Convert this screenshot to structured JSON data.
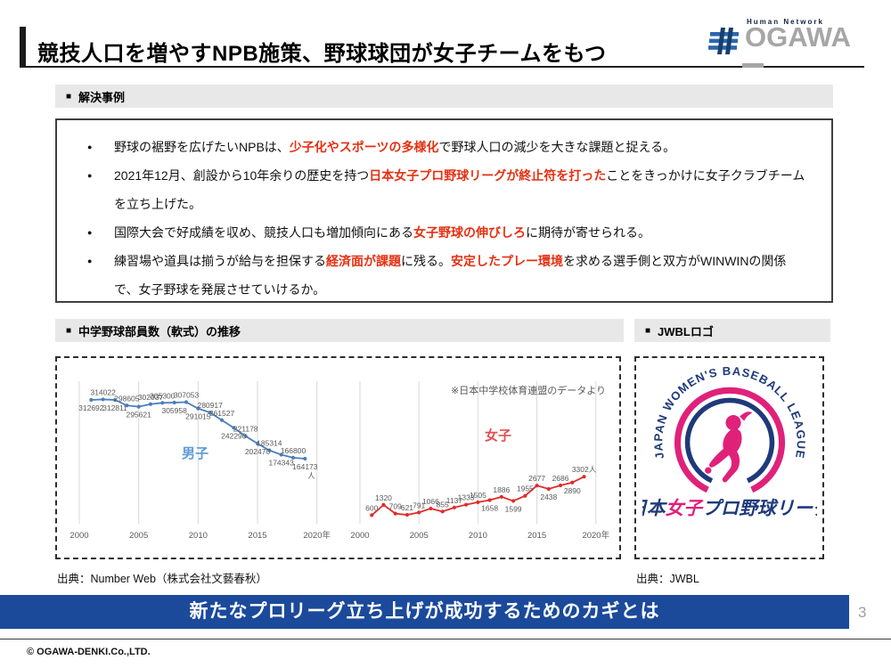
{
  "page": {
    "banner": "新たなプロリーグ立ち上げが成功するためのカギとは",
    "number": "3",
    "footer": "© OGAWA-DENKI.Co.,LTD."
  },
  "header": {
    "title": "競技人口を増やすNPB施策、野球球団が女子チームをもつ",
    "logo": {
      "tagline": "Human Network",
      "brand": "OGAWA"
    }
  },
  "case_section": {
    "marker": "■",
    "heading": "解決事例",
    "bullets": [
      {
        "segments": [
          {
            "t": "野球の裾野を広げたいNPBは、"
          },
          {
            "t": "少子化やスポーツの多様化",
            "em": true
          },
          {
            "t": "で野球人口の減少を大きな課題と捉える。"
          }
        ]
      },
      {
        "segments": [
          {
            "t": "2021年12月、創設から10年余りの歴史を持つ"
          },
          {
            "t": "日本女子プロ野球リーグが終止符を打った",
            "em": true
          },
          {
            "t": "ことをきっかけに女子クラブチームを立ち上げた。"
          }
        ]
      },
      {
        "segments": [
          {
            "t": "国際大会で好成績を収め、競技人口も増加傾向にある"
          },
          {
            "t": "女子野球の伸びしろ",
            "em": true
          },
          {
            "t": "に期待が寄せられる。"
          }
        ]
      },
      {
        "segments": [
          {
            "t": "練習場や道具は揃うが給与を担保する"
          },
          {
            "t": "経済面が課題",
            "em": true
          },
          {
            "t": "に残る。"
          },
          {
            "t": "安定したプレー環境",
            "em": true
          },
          {
            "t": "を求める選手側と双方がWINWINの関係で、女子野球を発展させていけるか。"
          }
        ]
      }
    ]
  },
  "chart_section": {
    "marker": "■",
    "heading": "中学野球部員数（軟式）の推移",
    "source": "出典：Number Web（株式会社文藝春秋）"
  },
  "logo_section": {
    "marker": "■",
    "heading": "JWBLロゴ",
    "source": "出典：JWBL",
    "logo": {
      "arc_text": "JAPAN WOMEN'S BASEBALL LEAGUE",
      "name_parts": [
        "日本",
        "女子",
        "プロ野球リーグ"
      ],
      "pink": "#e0217a",
      "navy": "#1e3a7a"
    }
  },
  "colors": {
    "banner_bg": "#1b4a9b",
    "emphasis_red": "#e53012",
    "band_gray": "#e8e8e8",
    "male_blue": "#4a7ebb",
    "female_red": "#e02b2b",
    "label_gray": "#595959"
  },
  "chart_data": [
    {
      "type": "line",
      "title": "男子",
      "title_color": "#5b9bd5",
      "color": "#4a7ebb",
      "x": [
        2001,
        2002,
        2003,
        2004,
        2005,
        2006,
        2007,
        2008,
        2009,
        2010,
        2011,
        2012,
        2013,
        2014,
        2015,
        2016,
        2017,
        2018,
        2019
      ],
      "values": [
        312692,
        314022,
        312811,
        298605,
        295621,
        302037,
        305300,
        305958,
        307053,
        291015,
        280917,
        261527,
        242290,
        221178,
        202470,
        185314,
        174343,
        166800,
        164173
      ],
      "label_side": [
        "below",
        "above",
        "below",
        "above",
        "below",
        "above",
        "above",
        "below",
        "above",
        "below",
        "above",
        "above",
        "below",
        "above",
        "below",
        "above",
        "below",
        "above",
        "below"
      ],
      "unit": "人",
      "unit_new_line": true,
      "grid_years": [
        2000,
        2005,
        2010,
        2015,
        2020
      ],
      "xticks": [
        "2000",
        "2005",
        "2010",
        "2015",
        "2020年"
      ],
      "ylim": [
        0,
        360000
      ],
      "annotation": ""
    },
    {
      "type": "line",
      "title": "女子",
      "title_color": "#e05050",
      "color": "#e02b2b",
      "x": [
        2001,
        2002,
        2003,
        2004,
        2005,
        2006,
        2007,
        2008,
        2009,
        2010,
        2011,
        2012,
        2013,
        2014,
        2015,
        2016,
        2017,
        2018,
        2019
      ],
      "values": [
        600,
        1320,
        709,
        621,
        791,
        1066,
        855,
        1137,
        1333,
        1505,
        1658,
        1886,
        1599,
        1955,
        2677,
        2438,
        2686,
        2890,
        3302
      ],
      "label_side": [
        "above",
        "above",
        "above",
        "above",
        "above",
        "above",
        "above",
        "above",
        "above",
        "above",
        "below",
        "above",
        "below",
        "above",
        "above",
        "below",
        "above",
        "below",
        "above"
      ],
      "unit": "人",
      "unit_new_line": false,
      "grid_years": [
        2000,
        2005,
        2010,
        2015,
        2020
      ],
      "xticks": [
        "2000",
        "2005",
        "2010",
        "2015",
        "2020年"
      ],
      "ylim": [
        0,
        10000
      ],
      "annotation": "※日本中学校体育連盟のデータより"
    }
  ]
}
